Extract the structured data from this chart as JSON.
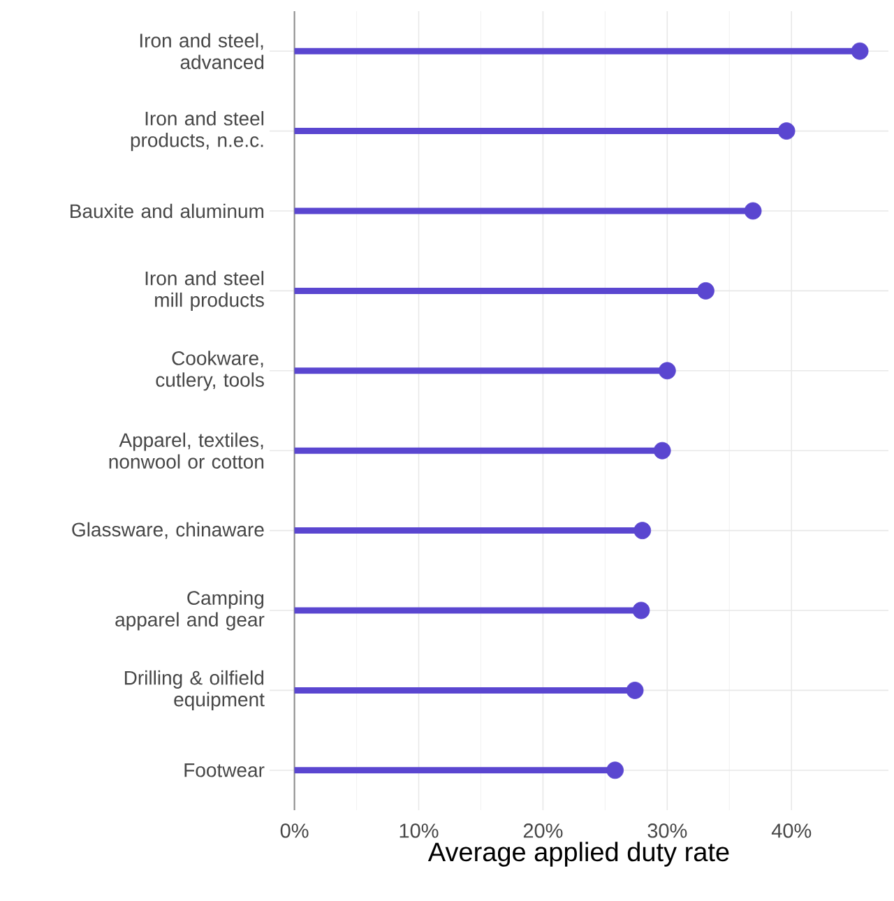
{
  "chart_data": {
    "type": "lollipop",
    "orientation": "horizontal",
    "categories": [
      "Iron and steel, advanced",
      "Iron and steel products, n.e.c.",
      "Bauxite and aluminum",
      "Iron and steel mill products",
      "Cookware, cutlery, tools",
      "Apparel, textiles, nonwool or cotton",
      "Glassware, chinaware",
      "Camping apparel and gear",
      "Drilling & oilfield equipment",
      "Footwear"
    ],
    "values": [
      45.5,
      39.6,
      36.9,
      33.1,
      30.0,
      29.6,
      28.0,
      27.9,
      27.4,
      25.8
    ],
    "color": "#5a46d0",
    "xlabel": "Average applied duty rate",
    "xlim": [
      -2,
      47.8
    ],
    "xticks": [
      {
        "value": 0,
        "label": "0%"
      },
      {
        "value": 10,
        "label": "10%"
      },
      {
        "value": 20,
        "label": "20%"
      },
      {
        "value": 30,
        "label": "30%"
      },
      {
        "value": 40,
        "label": "40%"
      }
    ],
    "grid": true
  }
}
